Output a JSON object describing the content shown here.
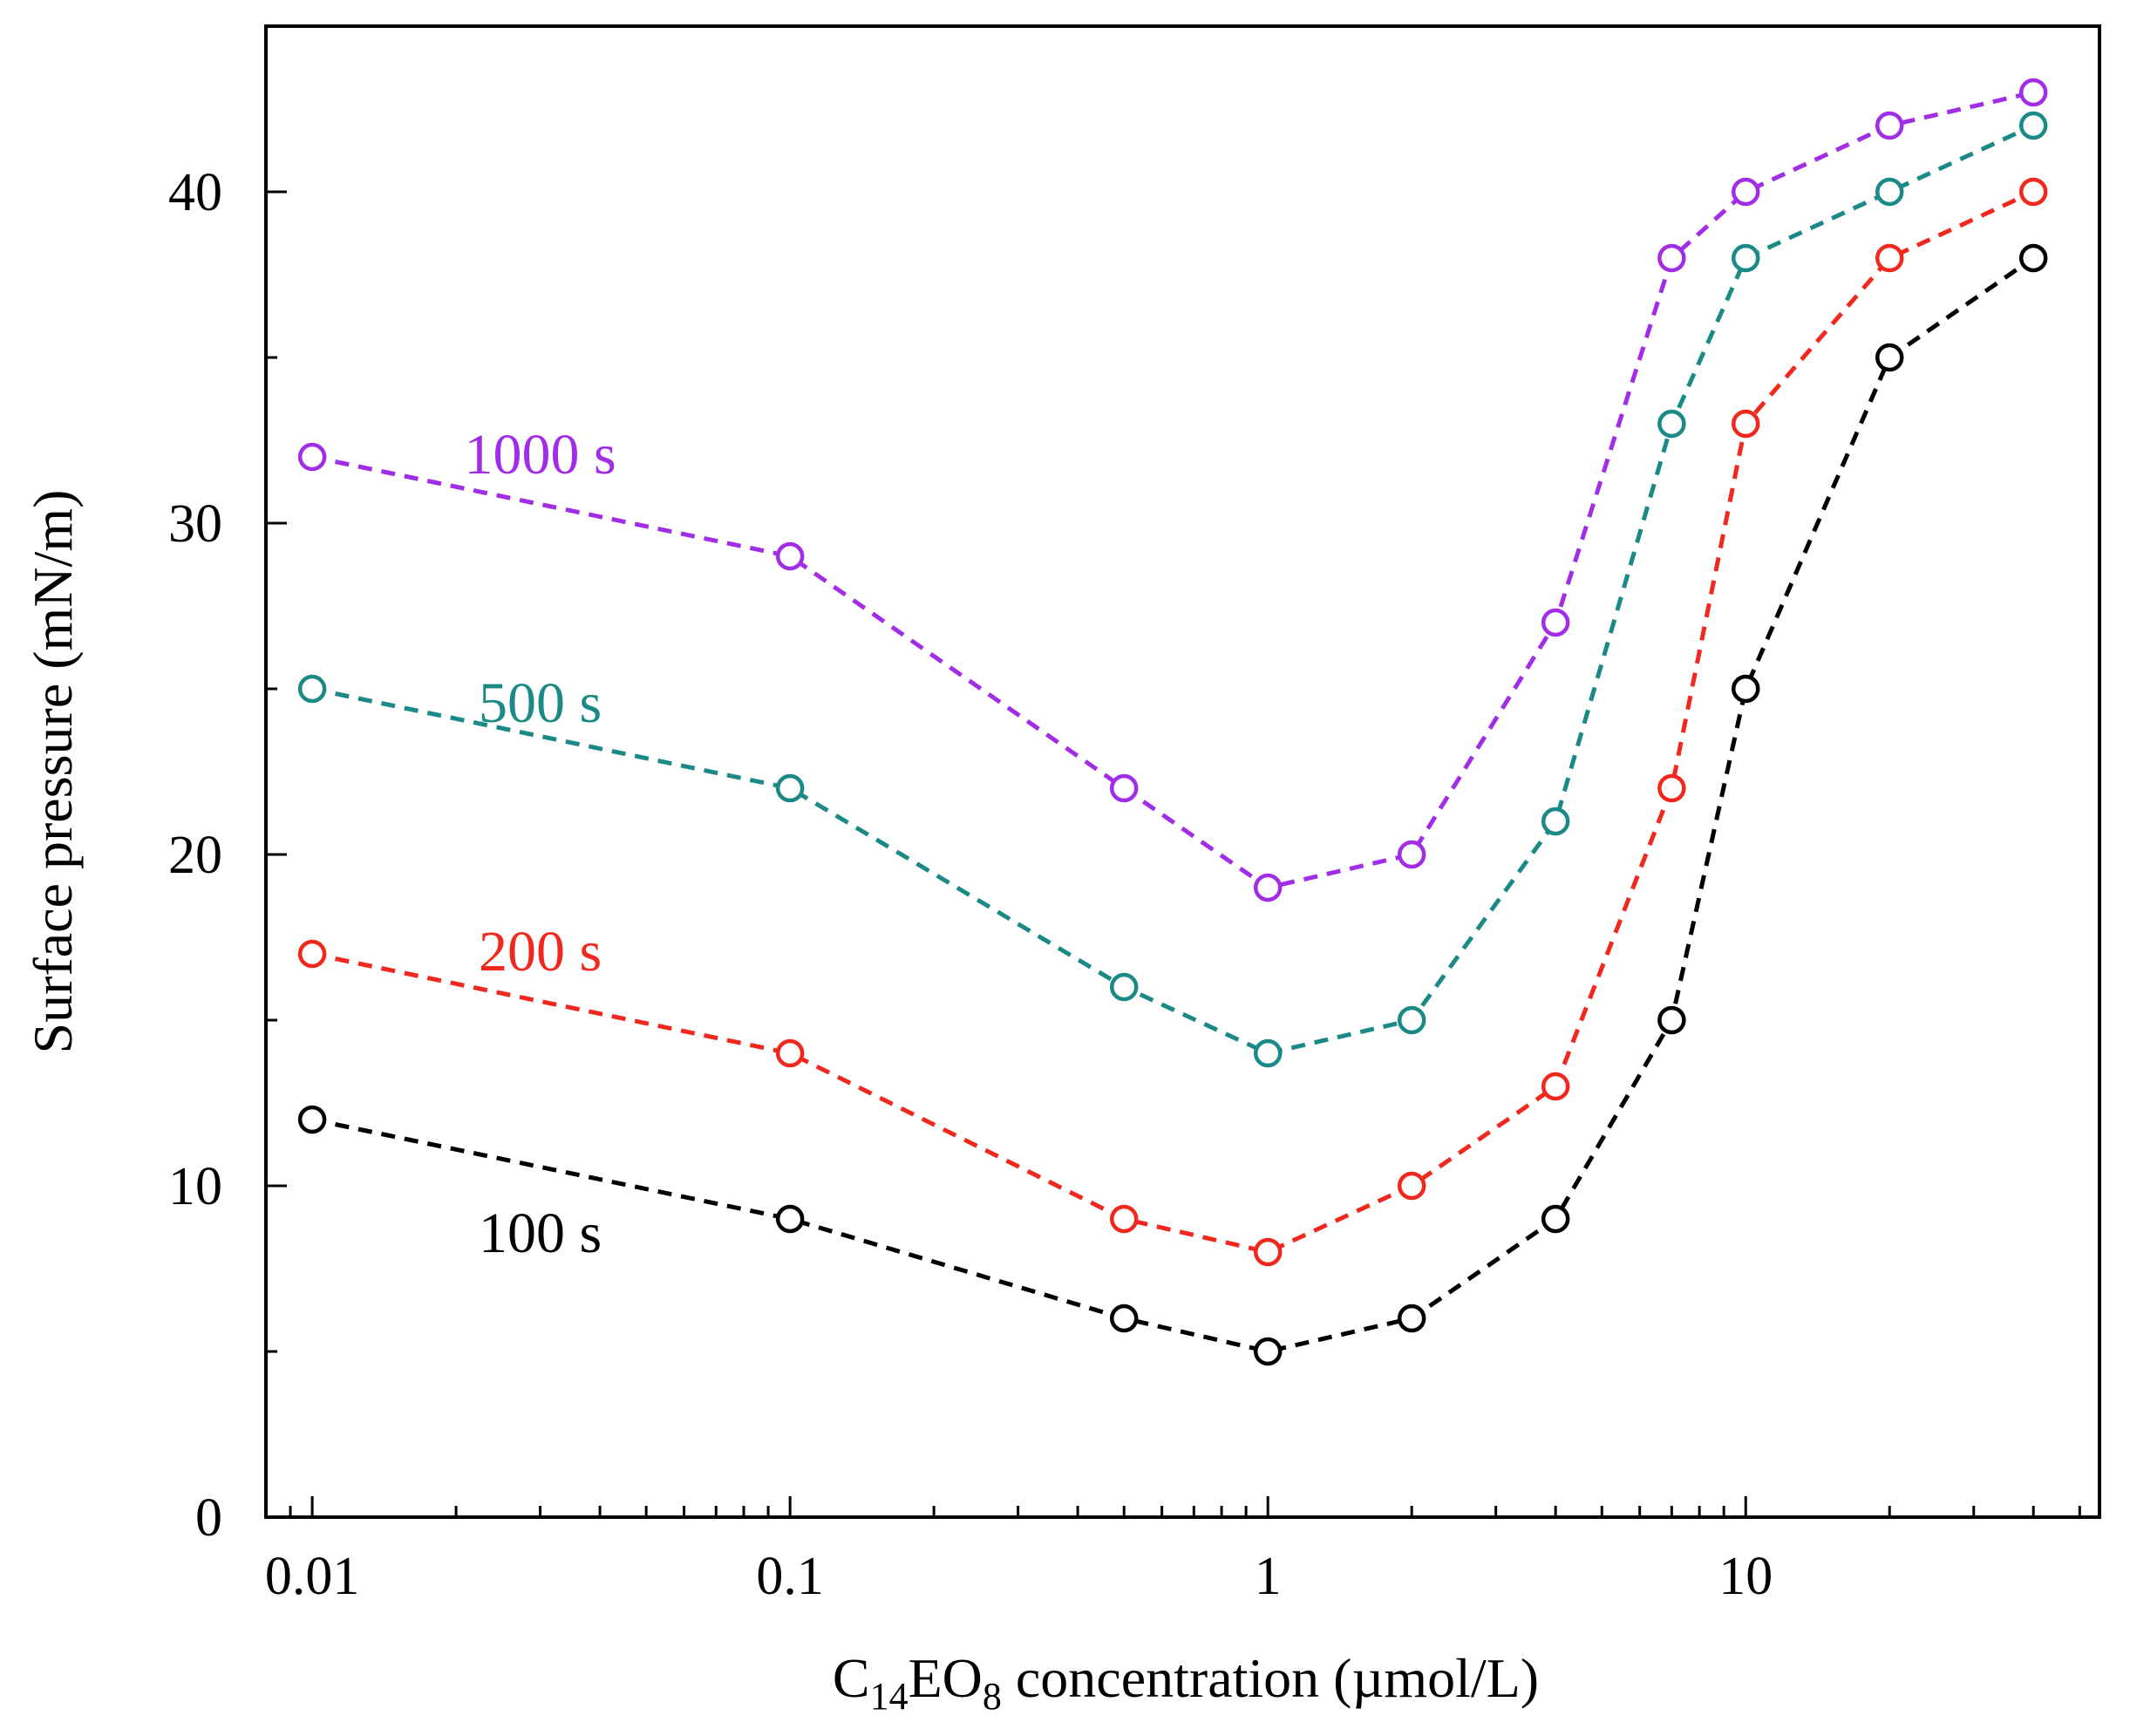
{
  "chart_data": {
    "type": "line",
    "xscale": "log",
    "xlim": [
      0.008,
      55
    ],
    "ylim": [
      0,
      45
    ],
    "xticks": [
      {
        "value": 0.01,
        "label": "0.01"
      },
      {
        "value": 0.1,
        "label": "0.1"
      },
      {
        "value": 1,
        "label": "1"
      },
      {
        "value": 10,
        "label": "10"
      }
    ],
    "yticks": [
      {
        "value": 0,
        "label": "0"
      },
      {
        "value": 10,
        "label": "10"
      },
      {
        "value": 20,
        "label": "20"
      },
      {
        "value": 30,
        "label": "30"
      },
      {
        "value": 40,
        "label": "40"
      }
    ],
    "ylabel": "Surface pressure (mN/m)",
    "xlabel": {
      "prefix": "C",
      "sub1": "14",
      "mid": "EO",
      "sub2": "8",
      "suffix": " concentration (µmol/L)"
    },
    "x": [
      0.01,
      0.1,
      0.5,
      1,
      2,
      4,
      7,
      10,
      20,
      40
    ],
    "series": [
      {
        "name": "1000 s",
        "color": "#a12de6",
        "values": [
          32,
          29,
          22,
          19,
          20,
          27,
          38,
          40,
          42,
          43
        ],
        "label_x": 0.03,
        "label_y": 31.5
      },
      {
        "name": "500 s",
        "color": "#1b8a86",
        "values": [
          25,
          22,
          16,
          14,
          15,
          21,
          33,
          38,
          40,
          42
        ],
        "label_x": 0.03,
        "label_y": 24
      },
      {
        "name": "200 s",
        "color": "#f0281e",
        "values": [
          17,
          14,
          9,
          8,
          10,
          13,
          22,
          33,
          38,
          40
        ],
        "label_x": 0.03,
        "label_y": 16.5
      },
      {
        "name": "100 s",
        "color": "#000000",
        "values": [
          12,
          9,
          6,
          5,
          6,
          9,
          15,
          25,
          35,
          38
        ],
        "label_x": 0.03,
        "label_y": 8
      }
    ]
  }
}
